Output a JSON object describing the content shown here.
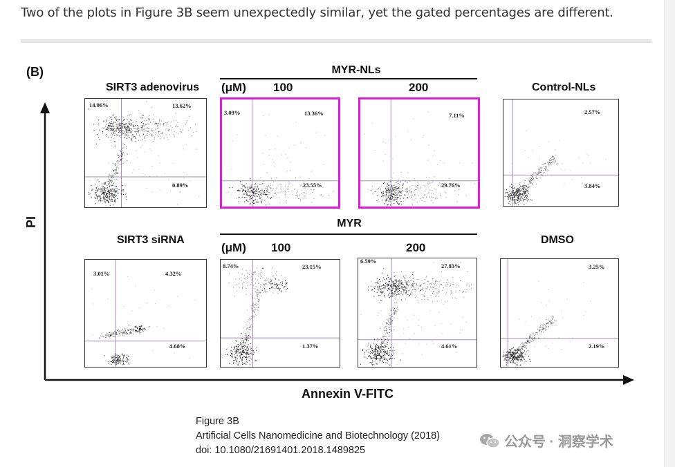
{
  "intro_text": "Two of the plots in Figure 3B seem unexpectedly similar, yet the gated percentages are different.",
  "figure": {
    "label": "(B)",
    "y_axis_label": "PI",
    "x_axis_label": "Annexin V-FITC",
    "myr_nls_title": "MYR-NLs",
    "myr_title": "MYR",
    "unit_label": "(μM)",
    "panels": {
      "sirt3_adenovirus": {
        "title": "SIRT3 adenovirus",
        "ul": "14.96%",
        "ur": "13.62%",
        "lr": "0.89%"
      },
      "myrnls_100": {
        "title": "100",
        "ul": "3.09%",
        "ur": "13.36%",
        "lr": "23.55%"
      },
      "myrnls_200": {
        "title": "200",
        "ul": "",
        "ur": "7.11%",
        "lr": "29.76%"
      },
      "control_nls": {
        "title": "Control-NLs",
        "ul": "",
        "ur": "2.57%",
        "lr": "3.84%"
      },
      "sirt3_sirna": {
        "title": "SIRT3 siRNA",
        "ul": "3.01%",
        "ur": "4.32%",
        "lr": "4.68%"
      },
      "myr_100": {
        "title": "100",
        "ul": "8.74%",
        "ur": "23.15%",
        "lr": "1.37%"
      },
      "myr_200": {
        "title": "200",
        "ul": "6.59%",
        "ur": "27.83%",
        "lr": "4.61%"
      },
      "dmso": {
        "title": "DMSO",
        "ul": "",
        "ur": "3.25%",
        "lr": "2.19%"
      }
    }
  },
  "caption": {
    "line1": "Figure 3B",
    "line2": "Artificial Cells Nanomedicine and Biotechnology (2018)",
    "line3": "doi: 10.1080/21691401.2018.1489825"
  },
  "watermark": {
    "text": "公众号 · 洞察学术"
  },
  "colors": {
    "highlight": "#e419df",
    "gate_line": "#a58bc0",
    "dots": "#222222"
  }
}
